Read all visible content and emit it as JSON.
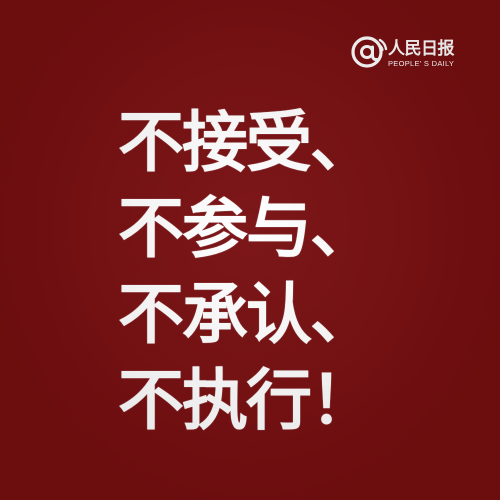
{
  "poster": {
    "background_color": "#780e10",
    "text_color": "#ffffff"
  },
  "logo": {
    "icon": "at-sign-broadcast-icon",
    "name": "人民日报",
    "subtitle": "PEOPLE' S DAILY"
  },
  "slogan": {
    "lines": [
      "不接受、",
      "不参与、",
      "不承认、",
      "不执行！"
    ]
  }
}
